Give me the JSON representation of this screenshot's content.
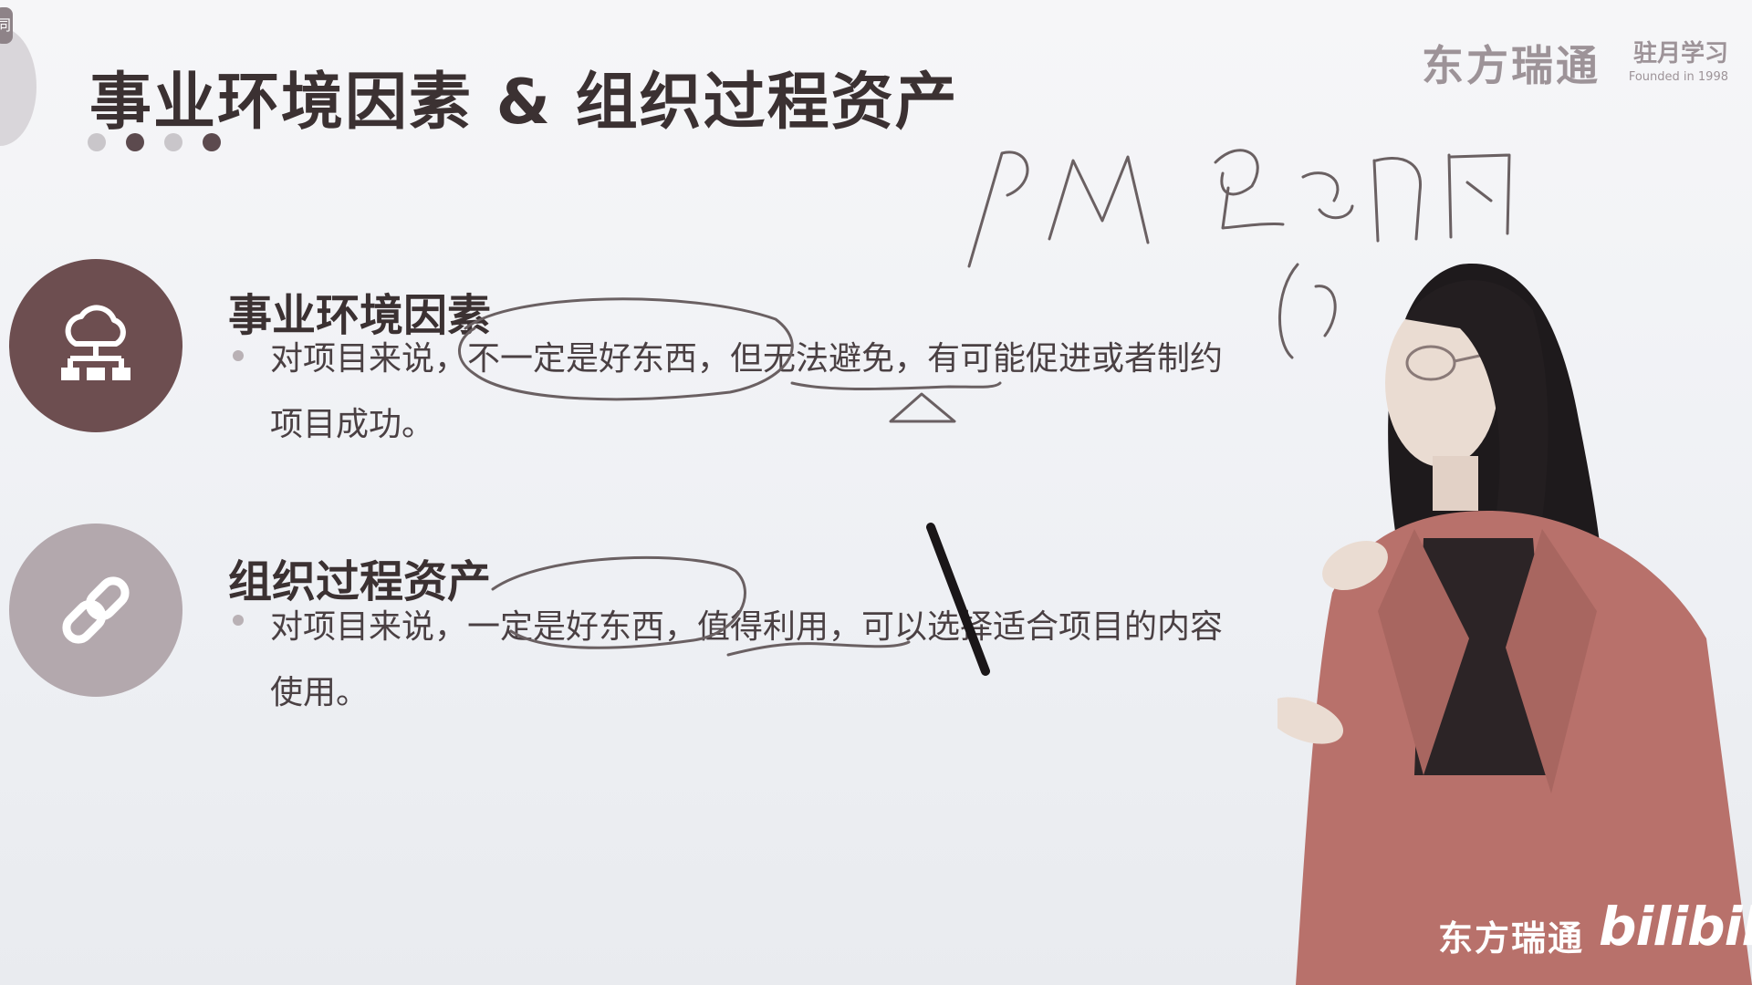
{
  "slide": {
    "corner_tab": "同",
    "title": "事业环境因素 & 组织过程资产"
  },
  "logo": {
    "main": "东方瑞通",
    "sub_title": "驻月学习",
    "sub_caption": "Founded in 1998"
  },
  "sections": [
    {
      "title": "事业环境因素",
      "icon": "cloud-network-icon",
      "text": "对项目来说，不一定是好东西，但无法避免，有可能促进或者制约项目成功。"
    },
    {
      "title": "组织过程资产",
      "icon": "chain-link-icon",
      "text": "对项目来说，一定是好东西，值得利用，可以选择适合项目的内容使用。"
    }
  ],
  "watermark": {
    "brand": "东方瑞通",
    "platform": "bilibili"
  },
  "colors": {
    "accent_dark": "#6d4e50",
    "accent_light": "#b3a8ad",
    "title": "#3b3132",
    "blazer": "#b8716b"
  }
}
